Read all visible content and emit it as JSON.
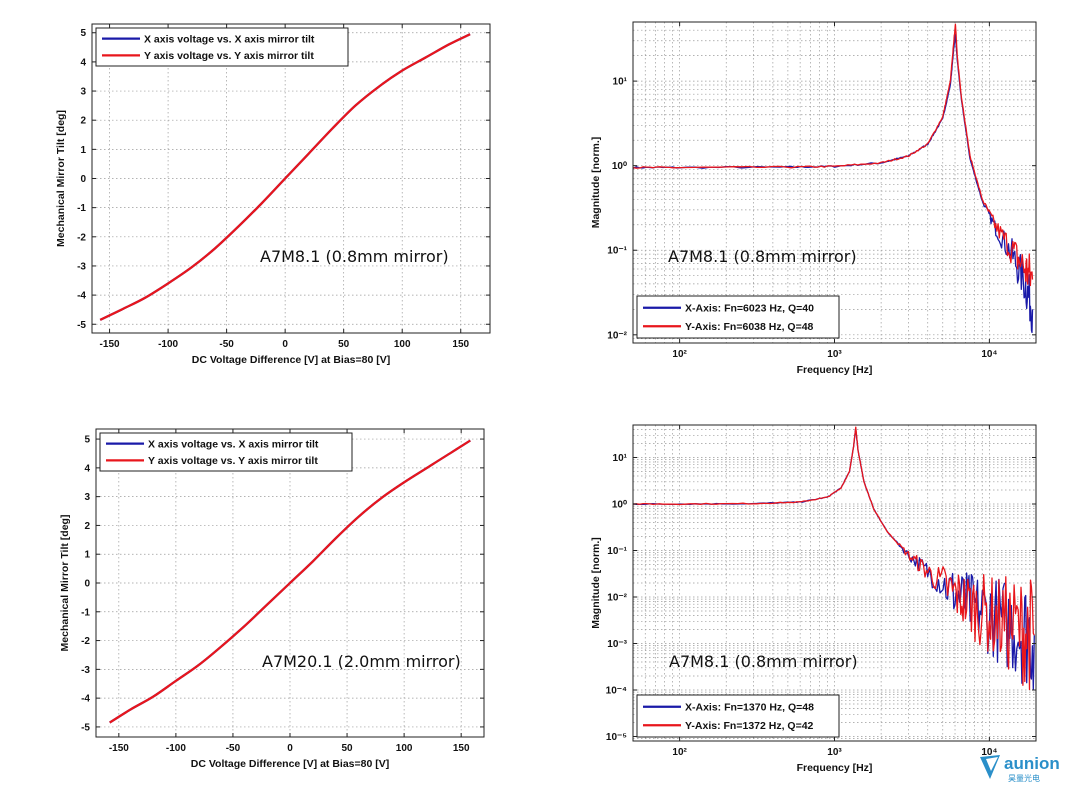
{
  "chart_data": [
    {
      "id": "tl",
      "type": "line",
      "xscale": "linear",
      "yscale": "linear",
      "xlim": [
        -165,
        175
      ],
      "ylim": [
        -5.3,
        5.3
      ],
      "xticks": [
        -150,
        -100,
        -50,
        0,
        50,
        100,
        150
      ],
      "xtick_labels": [
        "-150",
        "-100",
        "-50",
        "0",
        "50",
        "100",
        "150"
      ],
      "yticks": [
        -5,
        -4,
        -3,
        -2,
        -1,
        0,
        1,
        2,
        3,
        4,
        5
      ],
      "ytick_labels": [
        "-5",
        "-4",
        "-3",
        "-2",
        "-1",
        "0",
        "1",
        "2",
        "3",
        "4",
        "5"
      ],
      "xlabel": "DC Voltage Difference [V] at Bias=80 [V]",
      "ylabel": "Mechanical Mirror Tilt [deg]",
      "grid": true,
      "legend_position": "top-left",
      "annotation": "A7M8.1 (0.8mm mirror)",
      "series": [
        {
          "name": "X axis voltage vs. X axis mirror tilt",
          "color": "#1a1aa8",
          "x": [
            -158,
            -140,
            -120,
            -100,
            -80,
            -60,
            -40,
            -20,
            0,
            20,
            40,
            60,
            80,
            100,
            120,
            140,
            158
          ],
          "y": [
            -4.85,
            -4.5,
            -4.1,
            -3.6,
            -3.05,
            -2.4,
            -1.65,
            -0.85,
            0,
            0.85,
            1.7,
            2.5,
            3.15,
            3.7,
            4.15,
            4.6,
            4.95
          ]
        },
        {
          "name": "Y axis voltage vs. Y axis mirror tilt",
          "color": "#e8161c",
          "x": [
            -158,
            -140,
            -120,
            -100,
            -80,
            -60,
            -40,
            -20,
            0,
            20,
            40,
            60,
            80,
            100,
            120,
            140,
            158
          ],
          "y": [
            -4.85,
            -4.5,
            -4.1,
            -3.6,
            -3.05,
            -2.4,
            -1.65,
            -0.85,
            0,
            0.85,
            1.7,
            2.5,
            3.15,
            3.7,
            4.15,
            4.6,
            4.95
          ]
        }
      ]
    },
    {
      "id": "tr",
      "type": "line",
      "xscale": "log",
      "yscale": "log",
      "xlim": [
        50,
        20000
      ],
      "ylim": [
        0.008,
        50
      ],
      "xticks": [
        100,
        1000,
        10000
      ],
      "xtick_labels": [
        "10²",
        "10³",
        "10⁴"
      ],
      "yticks": [
        0.01,
        0.1,
        1,
        10
      ],
      "ytick_labels": [
        "10⁻²",
        "10⁻¹",
        "10⁰",
        "10¹"
      ],
      "xlabel": "Frequency [Hz]",
      "ylabel": "Magnitude [norm.]",
      "grid": true,
      "legend_position": "bottom-left",
      "annotation": "A7M8.1 (0.8mm mirror)",
      "series": [
        {
          "name": "X-Axis: Fn=6023 Hz, Q=40",
          "color": "#1a1aa8",
          "x": [
            50,
            100,
            500,
            1000,
            2000,
            3000,
            4000,
            5000,
            5600,
            5900,
            6023,
            6200,
            6600,
            7500,
            9000,
            11000,
            14000,
            17000,
            19000
          ],
          "y": [
            0.95,
            0.95,
            0.96,
            0.98,
            1.08,
            1.3,
            1.8,
            3.6,
            9,
            25,
            36,
            18,
            6,
            1.2,
            0.38,
            0.18,
            0.09,
            0.04,
            0.02
          ]
        },
        {
          "name": "Y-Axis: Fn=6038 Hz, Q=48",
          "color": "#e8161c",
          "x": [
            50,
            100,
            500,
            1000,
            2000,
            3000,
            4000,
            5000,
            5600,
            5900,
            6038,
            6200,
            6600,
            7500,
            9000,
            11000,
            14000,
            17000,
            19000
          ],
          "y": [
            0.95,
            0.95,
            0.96,
            0.98,
            1.08,
            1.3,
            1.8,
            3.8,
            10,
            30,
            48,
            20,
            6.5,
            1.3,
            0.4,
            0.19,
            0.1,
            0.06,
            0.045
          ]
        }
      ]
    },
    {
      "id": "bl",
      "type": "line",
      "xscale": "linear",
      "yscale": "linear",
      "xlim": [
        -170,
        170
      ],
      "ylim": [
        -5.35,
        5.35
      ],
      "xticks": [
        -150,
        -100,
        -50,
        0,
        50,
        100,
        150
      ],
      "xtick_labels": [
        "-150",
        "-100",
        "-50",
        "0",
        "50",
        "100",
        "150"
      ],
      "yticks": [
        -5,
        -4,
        -3,
        -2,
        -1,
        0,
        1,
        2,
        3,
        4,
        5
      ],
      "ytick_labels": [
        "-5",
        "-4",
        "-3",
        "-2",
        "-1",
        "0",
        "1",
        "2",
        "3",
        "4",
        "5"
      ],
      "xlabel": "DC Voltage Difference [V] at Bias=80 [V]",
      "ylabel": "Mechanical Mirror Tilt [deg]",
      "grid": true,
      "legend_position": "top-left",
      "annotation": "A7M20.1 (2.0mm mirror)",
      "series": [
        {
          "name": "X axis voltage vs. X axis mirror tilt",
          "color": "#1a1aa8",
          "x": [
            -158,
            -140,
            -120,
            -100,
            -80,
            -60,
            -40,
            -20,
            0,
            20,
            40,
            60,
            80,
            100,
            120,
            140,
            158
          ],
          "y": [
            -4.85,
            -4.4,
            -3.95,
            -3.4,
            -2.85,
            -2.2,
            -1.5,
            -0.75,
            0,
            0.75,
            1.55,
            2.3,
            2.95,
            3.5,
            4.0,
            4.5,
            4.95
          ]
        },
        {
          "name": "Y axis voltage vs. Y axis mirror tilt",
          "color": "#e8161c",
          "x": [
            -158,
            -140,
            -120,
            -100,
            -80,
            -60,
            -40,
            -20,
            0,
            20,
            40,
            60,
            80,
            100,
            120,
            140,
            158
          ],
          "y": [
            -4.85,
            -4.4,
            -3.95,
            -3.4,
            -2.85,
            -2.2,
            -1.5,
            -0.75,
            0,
            0.75,
            1.55,
            2.3,
            2.95,
            3.5,
            4.0,
            4.5,
            4.95
          ]
        }
      ]
    },
    {
      "id": "br",
      "type": "line",
      "xscale": "log",
      "yscale": "log",
      "xlim": [
        50,
        20000
      ],
      "ylim": [
        8e-06,
        50
      ],
      "xticks": [
        100,
        1000,
        10000
      ],
      "xtick_labels": [
        "10²",
        "10³",
        "10⁴"
      ],
      "yticks": [
        1e-05,
        0.0001,
        0.001,
        0.01,
        0.1,
        1,
        10
      ],
      "ytick_labels": [
        "10⁻⁵",
        "10⁻⁴",
        "10⁻³",
        "10⁻²",
        "10⁻¹",
        "10⁰",
        "10¹"
      ],
      "xlabel": "Frequency [Hz]",
      "ylabel": "Magnitude [norm.]",
      "grid": true,
      "legend_position": "bottom-left",
      "annotation": "A7M8.1 (0.8mm mirror)",
      "series": [
        {
          "name": "X-Axis: Fn=1370 Hz, Q=48",
          "color": "#1a1aa8",
          "x": [
            50,
            100,
            300,
            600,
            900,
            1100,
            1250,
            1330,
            1370,
            1420,
            1550,
            1800,
            2200,
            3000,
            4000,
            5500,
            7000,
            9000,
            12000,
            16000,
            19500
          ],
          "y": [
            1,
            1,
            1.02,
            1.1,
            1.4,
            2.2,
            5,
            18,
            42,
            14,
            3,
            0.75,
            0.25,
            0.08,
            0.035,
            0.015,
            0.008,
            0.005,
            0.003,
            0.002,
            0.0015
          ]
        },
        {
          "name": "Y-Axis: Fn=1372 Hz, Q=42",
          "color": "#e8161c",
          "x": [
            50,
            100,
            300,
            600,
            900,
            1100,
            1250,
            1330,
            1372,
            1420,
            1550,
            1800,
            2200,
            3000,
            4000,
            5500,
            7000,
            9000,
            12000,
            16000,
            19500
          ],
          "y": [
            1,
            1,
            1.02,
            1.1,
            1.4,
            2.2,
            5,
            18,
            45,
            14,
            3,
            0.75,
            0.25,
            0.08,
            0.035,
            0.015,
            0.008,
            0.005,
            0.003,
            0.002,
            0.0015
          ]
        }
      ]
    }
  ],
  "logo": {
    "text": "aunion",
    "subtext": "昊量光电",
    "color": "#2a8fc9"
  }
}
